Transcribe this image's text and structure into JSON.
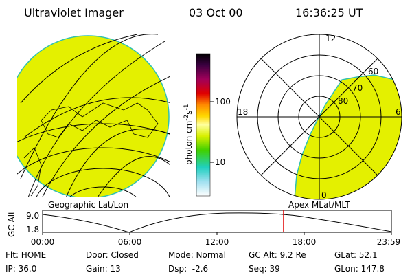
{
  "header": {
    "title": "Ultraviolet Imager",
    "date": "03 Oct 00",
    "time": "16:36:25 UT"
  },
  "colorbar": {
    "label": {
      "text": "photon cm",
      "exp1": "-2",
      "unit2": "s",
      "exp2": "-1"
    },
    "ticks": [
      "100",
      "10"
    ]
  },
  "polar": {
    "mlt_labels": [
      "12",
      "18",
      "6",
      "0"
    ],
    "mlat_labels": [
      "80",
      "70",
      "60"
    ]
  },
  "captions": {
    "left": "Geographic Lat/Lon",
    "right": "Apex MLat/MLT"
  },
  "timeline": {
    "ylabel": "GC Alt",
    "yticks": [
      "9.0",
      "1.8"
    ],
    "xticks": [
      "00:00",
      "06:00",
      "12:00",
      "18:00",
      "23:59"
    ]
  },
  "footer": {
    "rows": [
      [
        "Flt: HOME",
        "Door: Closed",
        "Mode: Normal",
        "GC Alt: 9.2 Re",
        "GLat: 52.1"
      ],
      [
        "IP: 36.0",
        "Gain: 13",
        "Dsp:  -2.6",
        "Seq: 39",
        "GLon: 147.8"
      ]
    ]
  }
}
